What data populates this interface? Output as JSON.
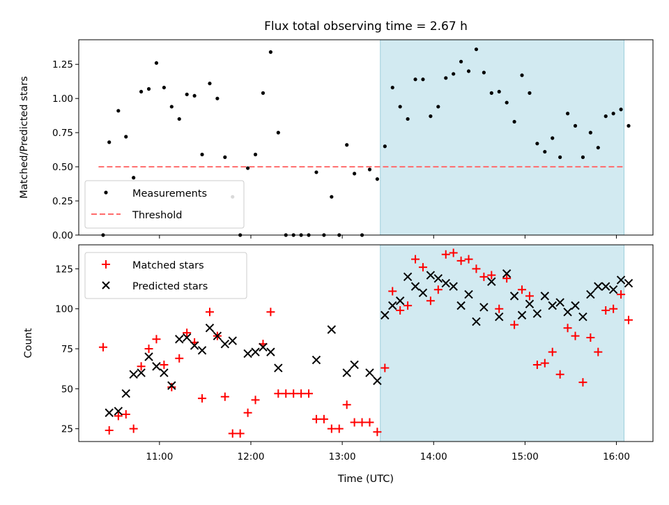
{
  "chart_data": [
    {
      "type": "scatter",
      "title": "Flux total observing time = 2.67 h",
      "xlabel": "",
      "ylabel": "Matched/Predicted stars",
      "x_ticks": [
        "11:00",
        "12:00",
        "13:00",
        "14:00",
        "15:00",
        "16:00"
      ],
      "y_ticks": [
        "0.00",
        "0.25",
        "0.50",
        "0.75",
        "1.00",
        "1.25"
      ],
      "xlim": [
        "10:07",
        "16:24"
      ],
      "ylim": [
        0,
        1.43
      ],
      "grid": false,
      "legend_position": "lower-left",
      "shaded_region": {
        "start": "13:25",
        "end": "16:05",
        "color": "#add8e6"
      },
      "threshold": {
        "name": "Threshold",
        "value": 0.5,
        "style": "dashed",
        "color": "#ff6b6b"
      },
      "series": [
        {
          "name": "Measurements",
          "marker": "dot",
          "color": "#000000",
          "points": [
            [
              "10:23",
              0.0
            ],
            [
              "10:27",
              0.68
            ],
            [
              "10:33",
              0.91
            ],
            [
              "10:38",
              0.72
            ],
            [
              "10:43",
              0.42
            ],
            [
              "10:48",
              1.05
            ],
            [
              "10:53",
              1.07
            ],
            [
              "10:58",
              1.26
            ],
            [
              "11:03",
              1.08
            ],
            [
              "11:08",
              0.94
            ],
            [
              "11:13",
              0.85
            ],
            [
              "11:18",
              1.03
            ],
            [
              "11:23",
              1.02
            ],
            [
              "11:28",
              0.59
            ],
            [
              "11:33",
              1.11
            ],
            [
              "11:38",
              1.0
            ],
            [
              "11:43",
              0.57
            ],
            [
              "11:48",
              0.28
            ],
            [
              "11:53",
              0.0
            ],
            [
              "11:58",
              0.49
            ],
            [
              "12:03",
              0.59
            ],
            [
              "12:08",
              1.04
            ],
            [
              "12:13",
              1.34
            ],
            [
              "12:18",
              0.75
            ],
            [
              "12:23",
              0.0
            ],
            [
              "12:28",
              0.0
            ],
            [
              "12:33",
              0.0
            ],
            [
              "12:38",
              0.0
            ],
            [
              "12:43",
              0.46
            ],
            [
              "12:48",
              0.0
            ],
            [
              "12:53",
              0.28
            ],
            [
              "12:58",
              0.0
            ],
            [
              "13:03",
              0.66
            ],
            [
              "13:08",
              0.45
            ],
            [
              "13:13",
              0.0
            ],
            [
              "13:18",
              0.48
            ],
            [
              "13:23",
              0.41
            ],
            [
              "13:28",
              0.65
            ],
            [
              "13:33",
              1.08
            ],
            [
              "13:38",
              0.94
            ],
            [
              "13:43",
              0.85
            ],
            [
              "13:48",
              1.14
            ],
            [
              "13:53",
              1.14
            ],
            [
              "13:58",
              0.87
            ],
            [
              "14:03",
              0.94
            ],
            [
              "14:08",
              1.15
            ],
            [
              "14:13",
              1.18
            ],
            [
              "14:18",
              1.27
            ],
            [
              "14:23",
              1.2
            ],
            [
              "14:28",
              1.36
            ],
            [
              "14:33",
              1.19
            ],
            [
              "14:38",
              1.04
            ],
            [
              "14:43",
              1.05
            ],
            [
              "14:48",
              0.97
            ],
            [
              "14:53",
              0.83
            ],
            [
              "14:58",
              1.17
            ],
            [
              "15:03",
              1.04
            ],
            [
              "15:08",
              0.67
            ],
            [
              "15:13",
              0.61
            ],
            [
              "15:18",
              0.71
            ],
            [
              "15:23",
              0.57
            ],
            [
              "15:28",
              0.89
            ],
            [
              "15:33",
              0.8
            ],
            [
              "15:38",
              0.57
            ],
            [
              "15:43",
              0.75
            ],
            [
              "15:48",
              0.64
            ],
            [
              "15:53",
              0.87
            ],
            [
              "15:58",
              0.89
            ],
            [
              "16:03",
              0.92
            ],
            [
              "16:08",
              0.8
            ]
          ]
        }
      ]
    },
    {
      "type": "scatter",
      "title": "",
      "xlabel": "Time (UTC)",
      "ylabel": "Count",
      "x_ticks": [
        "11:00",
        "12:00",
        "13:00",
        "14:00",
        "15:00",
        "16:00"
      ],
      "y_ticks": [
        "25",
        "50",
        "75",
        "100",
        "125"
      ],
      "xlim": [
        "10:07",
        "16:24"
      ],
      "ylim": [
        17,
        140
      ],
      "grid": false,
      "legend_position": "upper-left",
      "shaded_region": {
        "start": "13:25",
        "end": "16:05",
        "color": "#add8e6"
      },
      "series": [
        {
          "name": "Matched stars",
          "marker": "plus",
          "color": "#ff0000",
          "points": [
            [
              "10:23",
              76
            ],
            [
              "10:27",
              24
            ],
            [
              "10:33",
              33
            ],
            [
              "10:38",
              34
            ],
            [
              "10:43",
              25
            ],
            [
              "10:48",
              64
            ],
            [
              "10:53",
              75
            ],
            [
              "10:58",
              81
            ],
            [
              "11:03",
              65
            ],
            [
              "11:08",
              51
            ],
            [
              "11:13",
              69
            ],
            [
              "11:18",
              85
            ],
            [
              "11:23",
              79
            ],
            [
              "11:28",
              44
            ],
            [
              "11:33",
              98
            ],
            [
              "11:38",
              83
            ],
            [
              "11:43",
              45
            ],
            [
              "11:48",
              22
            ],
            [
              "11:53",
              22
            ],
            [
              "11:58",
              35
            ],
            [
              "12:03",
              43
            ],
            [
              "12:08",
              78
            ],
            [
              "12:13",
              98
            ],
            [
              "12:18",
              47
            ],
            [
              "12:23",
              47
            ],
            [
              "12:28",
              47
            ],
            [
              "12:33",
              47
            ],
            [
              "12:38",
              47
            ],
            [
              "12:43",
              31
            ],
            [
              "12:48",
              31
            ],
            [
              "12:53",
              25
            ],
            [
              "12:58",
              25
            ],
            [
              "13:03",
              40
            ],
            [
              "13:08",
              29
            ],
            [
              "13:13",
              29
            ],
            [
              "13:18",
              29
            ],
            [
              "13:23",
              23
            ],
            [
              "13:28",
              63
            ],
            [
              "13:33",
              111
            ],
            [
              "13:38",
              99
            ],
            [
              "13:43",
              102
            ],
            [
              "13:48",
              131
            ],
            [
              "13:53",
              126
            ],
            [
              "13:58",
              105
            ],
            [
              "14:03",
              112
            ],
            [
              "14:08",
              134
            ],
            [
              "14:13",
              135
            ],
            [
              "14:18",
              130
            ],
            [
              "14:23",
              131
            ],
            [
              "14:28",
              125
            ],
            [
              "14:33",
              120
            ],
            [
              "14:38",
              121
            ],
            [
              "14:43",
              100
            ],
            [
              "14:48",
              119
            ],
            [
              "14:53",
              90
            ],
            [
              "14:58",
              112
            ],
            [
              "15:03",
              108
            ],
            [
              "15:08",
              65
            ],
            [
              "15:13",
              66
            ],
            [
              "15:18",
              73
            ],
            [
              "15:23",
              59
            ],
            [
              "15:28",
              88
            ],
            [
              "15:33",
              83
            ],
            [
              "15:38",
              54
            ],
            [
              "15:43",
              82
            ],
            [
              "15:48",
              73
            ],
            [
              "15:53",
              99
            ],
            [
              "15:58",
              100
            ],
            [
              "16:03",
              109
            ],
            [
              "16:08",
              93
            ]
          ]
        },
        {
          "name": "Predicted stars",
          "marker": "x",
          "color": "#000000",
          "points": [
            [
              "10:27",
              35
            ],
            [
              "10:33",
              36
            ],
            [
              "10:38",
              47
            ],
            [
              "10:43",
              59
            ],
            [
              "10:48",
              60
            ],
            [
              "10:53",
              70
            ],
            [
              "10:58",
              64
            ],
            [
              "11:03",
              60
            ],
            [
              "11:08",
              52
            ],
            [
              "11:13",
              81
            ],
            [
              "11:18",
              82
            ],
            [
              "11:23",
              77
            ],
            [
              "11:28",
              74
            ],
            [
              "11:33",
              88
            ],
            [
              "11:38",
              83
            ],
            [
              "11:43",
              78
            ],
            [
              "11:48",
              80
            ],
            [
              "11:58",
              72
            ],
            [
              "12:03",
              73
            ],
            [
              "12:08",
              76
            ],
            [
              "12:13",
              73
            ],
            [
              "12:18",
              63
            ],
            [
              "12:43",
              68
            ],
            [
              "12:53",
              87
            ],
            [
              "13:03",
              60
            ],
            [
              "13:08",
              65
            ],
            [
              "13:18",
              60
            ],
            [
              "13:23",
              55
            ],
            [
              "13:28",
              96
            ],
            [
              "13:33",
              102
            ],
            [
              "13:38",
              105
            ],
            [
              "13:43",
              120
            ],
            [
              "13:48",
              114
            ],
            [
              "13:53",
              110
            ],
            [
              "13:58",
              121
            ],
            [
              "14:03",
              119
            ],
            [
              "14:08",
              116
            ],
            [
              "14:13",
              114
            ],
            [
              "14:18",
              102
            ],
            [
              "14:23",
              109
            ],
            [
              "14:28",
              92
            ],
            [
              "14:33",
              101
            ],
            [
              "14:38",
              117
            ],
            [
              "14:43",
              95
            ],
            [
              "14:48",
              122
            ],
            [
              "14:53",
              108
            ],
            [
              "14:58",
              96
            ],
            [
              "15:03",
              103
            ],
            [
              "15:08",
              97
            ],
            [
              "15:13",
              108
            ],
            [
              "15:18",
              102
            ],
            [
              "15:23",
              104
            ],
            [
              "15:28",
              98
            ],
            [
              "15:33",
              102
            ],
            [
              "15:38",
              95
            ],
            [
              "15:43",
              109
            ],
            [
              "15:48",
              114
            ],
            [
              "15:53",
              114
            ],
            [
              "15:58",
              112
            ],
            [
              "16:03",
              118
            ],
            [
              "16:08",
              116
            ]
          ]
        }
      ]
    }
  ]
}
